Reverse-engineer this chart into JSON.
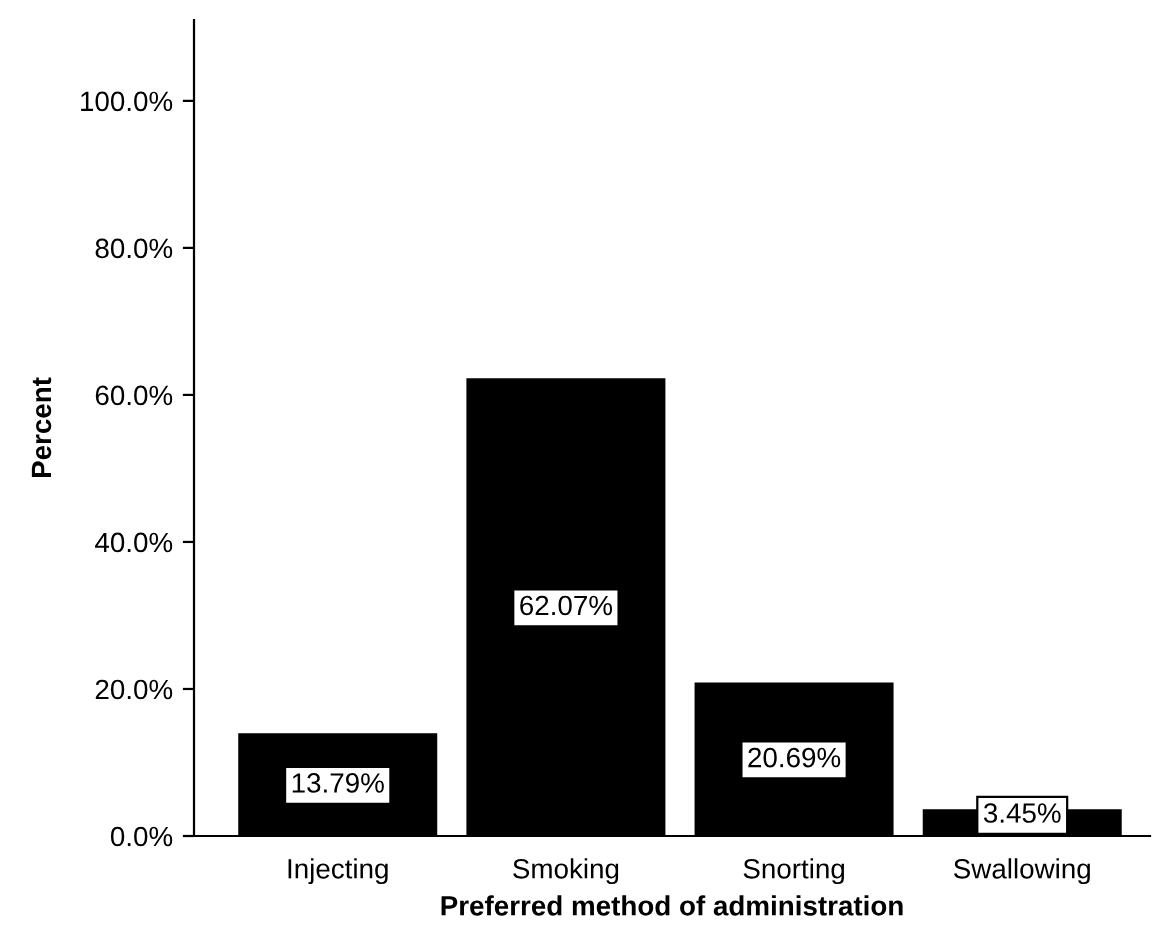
{
  "chart_data": {
    "type": "bar",
    "xlabel": "Preferred method of administration",
    "ylabel": "Percent",
    "categories": [
      "Injecting",
      "Smoking",
      "Snorting",
      "Swallowing"
    ],
    "values": [
      13.79,
      62.07,
      20.69,
      3.45
    ],
    "color": "#000000",
    "value_labels": [
      "13.79%",
      "62.07%",
      "20.69%",
      "3.45%"
    ],
    "ylim": [
      0,
      111
    ],
    "yticks": [
      {
        "value": 0,
        "label": "0.0%"
      },
      {
        "value": 20,
        "label": "20.0%"
      },
      {
        "value": 40,
        "label": "40.0%"
      },
      {
        "value": 60,
        "label": "60.0%"
      },
      {
        "value": 80,
        "label": "80.0%"
      },
      {
        "value": 100,
        "label": "100.0%"
      }
    ],
    "grid": false
  }
}
